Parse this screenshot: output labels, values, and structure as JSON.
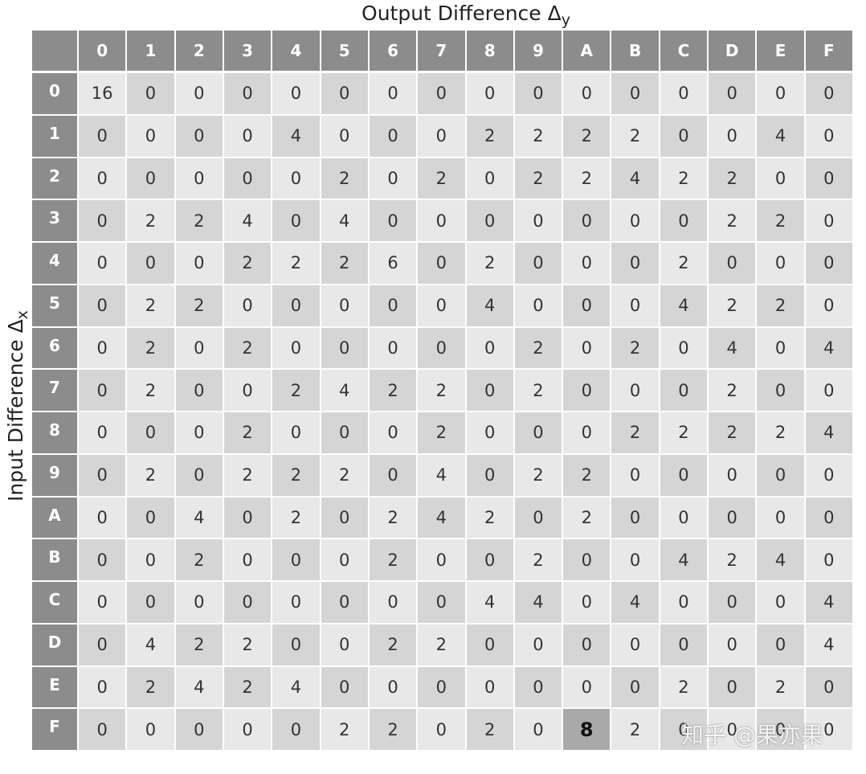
{
  "title": "Output Difference Δ",
  "title_subscript": "y",
  "row_axis_label": "Input Difference Δ",
  "row_axis_subscript": "x",
  "table": {
    "columns": [
      "0",
      "1",
      "2",
      "3",
      "4",
      "5",
      "6",
      "7",
      "8",
      "9",
      "A",
      "B",
      "C",
      "D",
      "E",
      "F"
    ],
    "row_headers": [
      "0",
      "1",
      "2",
      "3",
      "4",
      "5",
      "6",
      "7",
      "8",
      "9",
      "A",
      "B",
      "C",
      "D",
      "E",
      "F"
    ],
    "rows": [
      [
        16,
        0,
        0,
        0,
        0,
        0,
        0,
        0,
        0,
        0,
        0,
        0,
        0,
        0,
        0,
        0
      ],
      [
        0,
        0,
        0,
        0,
        4,
        0,
        0,
        0,
        2,
        2,
        2,
        2,
        0,
        0,
        4,
        0
      ],
      [
        0,
        0,
        0,
        0,
        0,
        2,
        0,
        2,
        0,
        2,
        2,
        4,
        2,
        2,
        0,
        0
      ],
      [
        0,
        2,
        2,
        4,
        0,
        4,
        0,
        0,
        0,
        0,
        0,
        0,
        0,
        2,
        2,
        0
      ],
      [
        0,
        0,
        0,
        2,
        2,
        2,
        6,
        0,
        2,
        0,
        0,
        0,
        2,
        0,
        0,
        0
      ],
      [
        0,
        2,
        2,
        0,
        0,
        0,
        0,
        0,
        4,
        0,
        0,
        0,
        4,
        2,
        2,
        0
      ],
      [
        0,
        2,
        0,
        2,
        0,
        0,
        0,
        0,
        0,
        2,
        0,
        2,
        0,
        4,
        0,
        4
      ],
      [
        0,
        2,
        0,
        0,
        2,
        4,
        2,
        2,
        0,
        2,
        0,
        0,
        0,
        2,
        0,
        0
      ],
      [
        0,
        0,
        0,
        2,
        0,
        0,
        0,
        2,
        0,
        0,
        0,
        2,
        2,
        2,
        2,
        4
      ],
      [
        0,
        2,
        0,
        2,
        2,
        2,
        0,
        4,
        0,
        2,
        2,
        0,
        0,
        0,
        0,
        0
      ],
      [
        0,
        0,
        4,
        0,
        2,
        0,
        2,
        4,
        2,
        0,
        2,
        0,
        0,
        0,
        0,
        0
      ],
      [
        0,
        0,
        2,
        0,
        0,
        0,
        2,
        0,
        0,
        2,
        0,
        0,
        4,
        2,
        4,
        0
      ],
      [
        0,
        0,
        0,
        0,
        0,
        0,
        0,
        0,
        4,
        4,
        0,
        4,
        0,
        0,
        0,
        4
      ],
      [
        0,
        4,
        2,
        2,
        0,
        0,
        2,
        2,
        0,
        0,
        0,
        0,
        0,
        0,
        0,
        4
      ],
      [
        0,
        2,
        4,
        2,
        4,
        0,
        0,
        0,
        0,
        0,
        0,
        0,
        2,
        0,
        2,
        0
      ],
      [
        0,
        0,
        0,
        0,
        0,
        2,
        2,
        0,
        2,
        0,
        8,
        2,
        0,
        0,
        0,
        0
      ]
    ],
    "highlighted_cell": [
      15,
      10
    ]
  },
  "watermark": "知乎 @果亦果"
}
